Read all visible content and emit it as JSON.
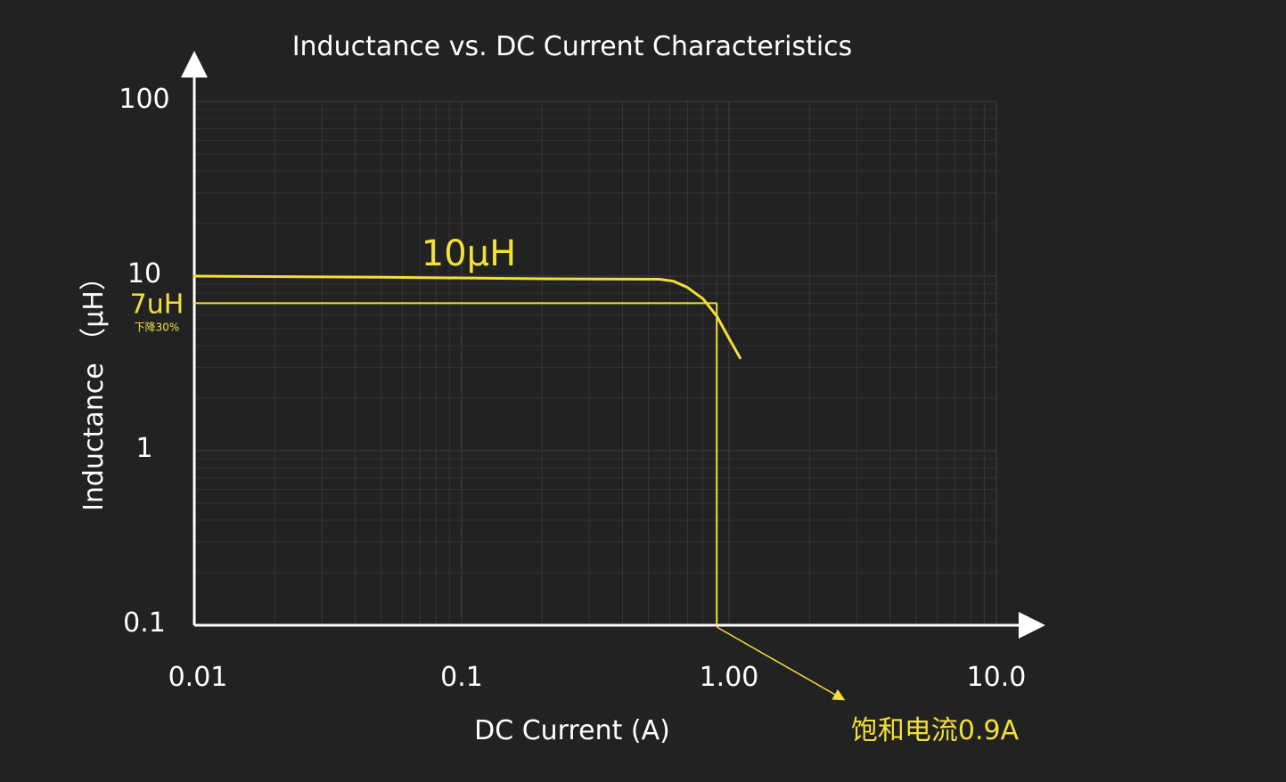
{
  "chart_data": {
    "type": "line",
    "title": "Inductance vs. DC Current Characteristics",
    "xlabel": "DC Current (A)",
    "ylabel": "Inductance （μH）",
    "x_scale": "log",
    "y_scale": "log",
    "xlim": [
      0.01,
      10.0
    ],
    "ylim": [
      0.1,
      100
    ],
    "x_ticks": [
      {
        "value": 0.01,
        "label": "0.01"
      },
      {
        "value": 0.1,
        "label": "0.1"
      },
      {
        "value": 1.0,
        "label": "1.00"
      },
      {
        "value": 10.0,
        "label": "10.0"
      }
    ],
    "y_ticks": [
      {
        "value": 0.1,
        "label": "0.1"
      },
      {
        "value": 1,
        "label": "1"
      },
      {
        "value": 10,
        "label": "10"
      },
      {
        "value": 100,
        "label": "100"
      }
    ],
    "grid": true,
    "series": [
      {
        "name": "10μH",
        "color": "#f2e03a",
        "points": [
          [
            0.01,
            10.0
          ],
          [
            0.05,
            9.85
          ],
          [
            0.2,
            9.65
          ],
          [
            0.55,
            9.6
          ],
          [
            0.62,
            9.35
          ],
          [
            0.7,
            8.6
          ],
          [
            0.8,
            7.4
          ],
          [
            0.9,
            5.9
          ],
          [
            1.0,
            4.4
          ],
          [
            1.1,
            3.4
          ]
        ]
      }
    ],
    "annotations": {
      "threshold_label": "7uH",
      "threshold_sublabel": "下降30%",
      "threshold_value": 7,
      "saturation_current": 0.9,
      "saturation_label": "饱和电流0.9A"
    },
    "colors": {
      "background": "#222222",
      "axis": "#ffffff",
      "grid": "#3a3a3a",
      "accent": "#f2e03a",
      "text": "#ffffff"
    }
  }
}
